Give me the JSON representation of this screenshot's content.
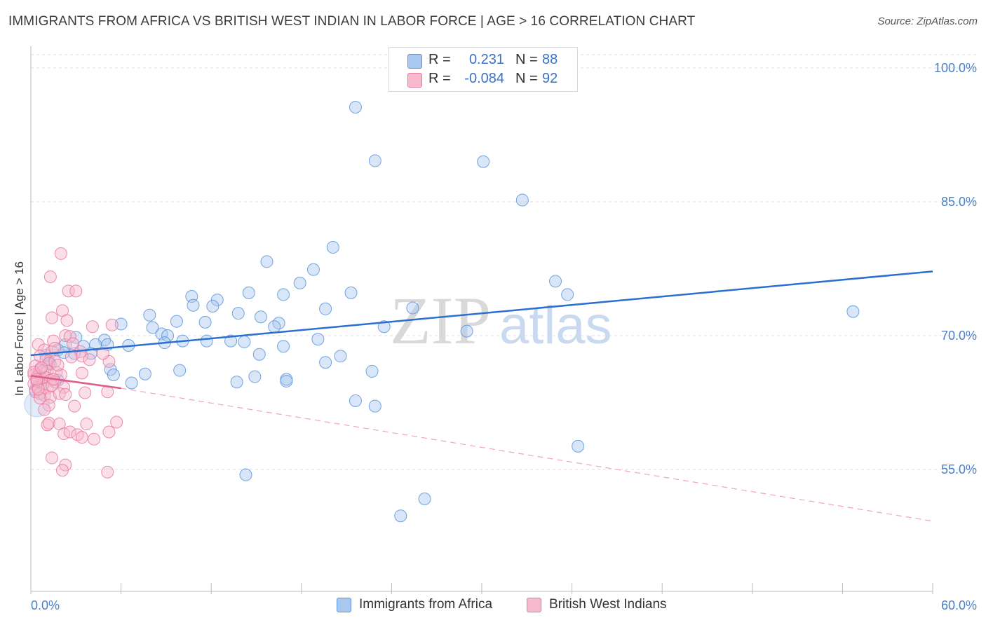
{
  "title": "IMMIGRANTS FROM AFRICA VS BRITISH WEST INDIAN IN LABOR FORCE | AGE > 16 CORRELATION CHART",
  "source": "Source: ZipAtlas.com",
  "watermark": "ZIPatlas",
  "legend": {
    "rows": [
      {
        "r_label": "R =",
        "r_value": "0.231",
        "n_label": "N =",
        "n_value": "88",
        "color": "#a9c8f0"
      },
      {
        "r_label": "R =",
        "r_value": "-0.084",
        "n_label": "N =",
        "n_value": "92",
        "color": "#f6b9cd"
      }
    ]
  },
  "bottom_legend": [
    {
      "label": "Immigrants from Africa",
      "color": "#a9c8f0"
    },
    {
      "label": "British West Indians",
      "color": "#f6b9cd"
    }
  ],
  "chart_data": {
    "type": "scatter",
    "xlabel": "",
    "ylabel": "In Labor Force | Age > 16",
    "xlim": [
      0,
      60
    ],
    "ylim": [
      40,
      103
    ],
    "x_tick_labels": [
      "0.0%",
      "60.0%"
    ],
    "y_ticks": [
      {
        "value": 100,
        "label": "100.0%"
      },
      {
        "value": 85,
        "label": "85.0%"
      },
      {
        "value": 70,
        "label": "70.0%"
      },
      {
        "value": 55,
        "label": "55.0%"
      }
    ],
    "grid": true,
    "series": [
      {
        "name": "Immigrants from Africa",
        "color": "#5b95de",
        "fill": "#a9c8f0",
        "trend": {
          "x": [
            0,
            60
          ],
          "y": [
            67.8,
            77.2
          ],
          "style": "solid",
          "line_color": "#2b6fd0"
        },
        "points": [
          [
            21.6,
            95.6
          ],
          [
            22.9,
            89.6
          ],
          [
            30.1,
            89.5
          ],
          [
            32.7,
            85.2
          ],
          [
            20.1,
            79.9
          ],
          [
            15.7,
            78.3
          ],
          [
            18.8,
            77.4
          ],
          [
            17.9,
            75.9
          ],
          [
            34.9,
            76.1
          ],
          [
            21.3,
            74.8
          ],
          [
            35.7,
            74.6
          ],
          [
            14.5,
            74.8
          ],
          [
            16.8,
            74.6
          ],
          [
            10.7,
            74.4
          ],
          [
            12.4,
            74.0
          ],
          [
            10.8,
            73.4
          ],
          [
            12.1,
            73.3
          ],
          [
            19.6,
            73.0
          ],
          [
            25.4,
            73.1
          ],
          [
            13.8,
            72.5
          ],
          [
            15.3,
            72.1
          ],
          [
            7.9,
            72.3
          ],
          [
            9.7,
            71.6
          ],
          [
            11.6,
            71.5
          ],
          [
            16.5,
            71.4
          ],
          [
            6.0,
            71.3
          ],
          [
            16.2,
            71.0
          ],
          [
            23.5,
            71.0
          ],
          [
            29.0,
            70.5
          ],
          [
            8.7,
            70.2
          ],
          [
            8.1,
            70.9
          ],
          [
            9.1,
            70.0
          ],
          [
            3.0,
            69.8
          ],
          [
            4.9,
            69.5
          ],
          [
            5.1,
            69.0
          ],
          [
            6.5,
            68.9
          ],
          [
            8.9,
            69.2
          ],
          [
            10.1,
            69.4
          ],
          [
            11.7,
            69.4
          ],
          [
            13.3,
            69.4
          ],
          [
            14.2,
            69.3
          ],
          [
            19.1,
            69.6
          ],
          [
            16.8,
            68.8
          ],
          [
            2.3,
            69.0
          ],
          [
            3.5,
            68.8
          ],
          [
            4.3,
            69.0
          ],
          [
            1.8,
            68.4
          ],
          [
            2.2,
            68.1
          ],
          [
            4.0,
            68.0
          ],
          [
            15.2,
            67.9
          ],
          [
            20.6,
            67.7
          ],
          [
            19.6,
            67.0
          ],
          [
            1.2,
            67.1
          ],
          [
            5.3,
            66.2
          ],
          [
            5.5,
            65.6
          ],
          [
            7.6,
            65.7
          ],
          [
            9.9,
            66.1
          ],
          [
            14.9,
            65.4
          ],
          [
            17.0,
            65.1
          ],
          [
            17.0,
            64.9
          ],
          [
            13.7,
            64.8
          ],
          [
            6.7,
            64.7
          ],
          [
            22.7,
            66.0
          ],
          [
            1.8,
            65.0
          ],
          [
            21.6,
            62.7
          ],
          [
            22.9,
            62.1
          ],
          [
            36.4,
            57.6
          ],
          [
            14.3,
            54.4
          ],
          [
            26.2,
            51.7
          ],
          [
            24.6,
            49.8
          ],
          [
            54.7,
            72.7
          ],
          [
            0.5,
            65.5
          ],
          [
            0.8,
            64.6
          ],
          [
            1.3,
            66.8
          ],
          [
            0.3,
            63.9
          ],
          [
            1.0,
            67.8
          ],
          [
            2.9,
            68.0
          ],
          [
            0.6,
            66.1
          ]
        ]
      },
      {
        "name": "British West Indians",
        "color": "#e8799d",
        "fill": "#f6b9cd",
        "trend": {
          "x": [
            0,
            6.0
          ],
          "y": [
            65.5,
            64.1
          ],
          "x_dash": [
            6.0,
            60
          ],
          "y_dash": [
            64.1,
            49.2
          ],
          "style": "solid+dashed",
          "line_color": "#e25a8b"
        },
        "points": [
          [
            2.0,
            79.2
          ],
          [
            1.3,
            76.6
          ],
          [
            2.5,
            75.0
          ],
          [
            3.0,
            75.0
          ],
          [
            2.1,
            72.8
          ],
          [
            1.4,
            72.0
          ],
          [
            2.4,
            71.7
          ],
          [
            4.1,
            71.0
          ],
          [
            5.4,
            71.2
          ],
          [
            2.3,
            70.0
          ],
          [
            2.6,
            69.9
          ],
          [
            0.5,
            69.0
          ],
          [
            1.5,
            69.4
          ],
          [
            2.8,
            69.1
          ],
          [
            0.9,
            68.4
          ],
          [
            1.4,
            68.2
          ],
          [
            1.6,
            68.6
          ],
          [
            3.3,
            68.2
          ],
          [
            0.6,
            67.7
          ],
          [
            1.0,
            67.3
          ],
          [
            1.2,
            66.9
          ],
          [
            1.6,
            67.1
          ],
          [
            2.7,
            67.6
          ],
          [
            3.4,
            67.7
          ],
          [
            5.2,
            67.1
          ],
          [
            0.3,
            66.6
          ],
          [
            0.6,
            66.2
          ],
          [
            0.8,
            66.0
          ],
          [
            1.1,
            66.0
          ],
          [
            1.7,
            65.9
          ],
          [
            2.0,
            65.6
          ],
          [
            3.4,
            65.8
          ],
          [
            0.2,
            65.6
          ],
          [
            0.4,
            65.4
          ],
          [
            0.7,
            65.2
          ],
          [
            1.0,
            65.3
          ],
          [
            1.3,
            65.0
          ],
          [
            1.6,
            64.8
          ],
          [
            0.2,
            64.6
          ],
          [
            0.5,
            64.2
          ],
          [
            0.8,
            64.4
          ],
          [
            1.1,
            64.1
          ],
          [
            1.4,
            64.4
          ],
          [
            2.2,
            64.2
          ],
          [
            0.3,
            63.7
          ],
          [
            0.6,
            63.5
          ],
          [
            0.9,
            63.3
          ],
          [
            1.3,
            63.1
          ],
          [
            1.9,
            63.5
          ],
          [
            2.3,
            63.4
          ],
          [
            5.1,
            63.7
          ],
          [
            0.6,
            63.0
          ],
          [
            1.2,
            62.2
          ],
          [
            0.9,
            61.7
          ],
          [
            3.7,
            60.1
          ],
          [
            5.7,
            60.3
          ],
          [
            1.1,
            60.0
          ],
          [
            1.2,
            60.2
          ],
          [
            1.9,
            60.1
          ],
          [
            2.2,
            59.0
          ],
          [
            2.6,
            59.2
          ],
          [
            3.1,
            58.9
          ],
          [
            4.2,
            58.4
          ],
          [
            5.2,
            59.2
          ],
          [
            3.4,
            58.6
          ],
          [
            1.4,
            56.3
          ],
          [
            2.3,
            55.5
          ],
          [
            2.1,
            54.9
          ],
          [
            5.1,
            54.7
          ],
          [
            0.4,
            64.9
          ],
          [
            0.2,
            65.9
          ],
          [
            0.7,
            66.4
          ],
          [
            1.5,
            65.1
          ],
          [
            0.5,
            64.0
          ],
          [
            2.9,
            62.1
          ],
          [
            3.6,
            63.6
          ],
          [
            4.8,
            68.0
          ],
          [
            3.9,
            67.3
          ],
          [
            0.4,
            65.1
          ],
          [
            1.8,
            66.7
          ]
        ]
      }
    ]
  }
}
